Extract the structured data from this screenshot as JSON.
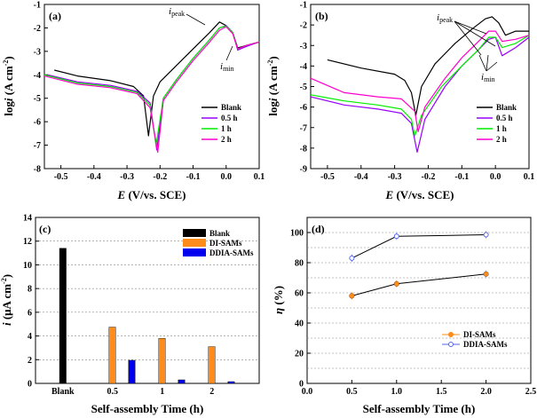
{
  "chart_data": [
    {
      "panel": "(a)",
      "type": "line",
      "xlabel_var": "E",
      "xlabel_unit": " (V/vs. SCE)",
      "ylabel_var": "log",
      "ylabel_i": "i",
      "ylabel_unit": " (A cm",
      "ylabel_exp": "-2",
      "ylabel_close": ")",
      "xlim": [
        -0.55,
        0.1
      ],
      "ylim": [
        -8,
        -1
      ],
      "xticks": [
        "-0.5",
        "-0.4",
        "-0.3",
        "-0.2",
        "-0.1",
        "0.0",
        "0.1"
      ],
      "yticks": [
        "-8",
        "-7",
        "-6",
        "-5",
        "-4",
        "-3",
        "-2",
        "-1"
      ],
      "annotations": {
        "peak_i": "i",
        "peak_sub": "peak",
        "min_i": "i",
        "min_sub": "min"
      },
      "legend": "right",
      "series": [
        {
          "name": "Blank",
          "color": "#000000",
          "x": [
            -0.52,
            -0.45,
            -0.35,
            -0.28,
            -0.25,
            -0.235,
            -0.22,
            -0.2,
            -0.15,
            -0.1,
            -0.05,
            -0.02,
            0.0,
            0.02,
            0.035,
            0.06,
            0.1
          ],
          "y": [
            -3.8,
            -4.05,
            -4.25,
            -4.5,
            -4.9,
            -6.6,
            -4.9,
            -4.3,
            -3.6,
            -2.9,
            -2.2,
            -1.75,
            -1.9,
            -2.2,
            -2.85,
            -2.75,
            -2.6
          ]
        },
        {
          "name": "0.5 h",
          "color": "#9900ff",
          "x": [
            -0.54,
            -0.45,
            -0.35,
            -0.27,
            -0.23,
            -0.21,
            -0.19,
            -0.15,
            -0.1,
            -0.05,
            -0.02,
            0.0,
            0.02,
            0.035,
            0.06,
            0.1
          ],
          "y": [
            -4.0,
            -4.3,
            -4.45,
            -4.7,
            -5.2,
            -7.2,
            -5.0,
            -4.2,
            -3.3,
            -2.5,
            -2.0,
            -1.9,
            -2.2,
            -2.95,
            -2.8,
            -2.6
          ]
        },
        {
          "name": "1 h",
          "color": "#00ee00",
          "x": [
            -0.55,
            -0.45,
            -0.35,
            -0.27,
            -0.23,
            -0.212,
            -0.19,
            -0.15,
            -0.1,
            -0.05,
            -0.02,
            0.0,
            0.02,
            0.035,
            0.06,
            0.1
          ],
          "y": [
            -4.0,
            -4.35,
            -4.5,
            -4.75,
            -5.3,
            -7.0,
            -5.0,
            -4.2,
            -3.3,
            -2.5,
            -2.0,
            -1.92,
            -2.2,
            -2.9,
            -2.75,
            -2.6
          ]
        },
        {
          "name": "2 h",
          "color": "#ff00cc",
          "x": [
            -0.55,
            -0.45,
            -0.35,
            -0.27,
            -0.23,
            -0.207,
            -0.19,
            -0.15,
            -0.1,
            -0.05,
            -0.02,
            0.0,
            0.02,
            0.035,
            0.06,
            0.1
          ],
          "y": [
            -4.05,
            -4.4,
            -4.55,
            -4.8,
            -5.4,
            -7.3,
            -5.1,
            -4.3,
            -3.4,
            -2.6,
            -2.1,
            -1.95,
            -2.25,
            -2.9,
            -2.75,
            -2.6
          ]
        }
      ]
    },
    {
      "panel": "(b)",
      "type": "line",
      "xlabel_var": "E",
      "xlabel_unit": " (V/vs. SCE)",
      "ylabel_var": "log",
      "ylabel_i": "i",
      "ylabel_unit": " (A cm",
      "ylabel_exp": "-2",
      "ylabel_close": ")",
      "xlim": [
        -0.55,
        0.1
      ],
      "ylim": [
        -9,
        -1
      ],
      "xticks": [
        "-0.5",
        "-0.4",
        "-0.3",
        "-0.2",
        "-0.1",
        "0.0",
        "0.1"
      ],
      "yticks": [
        "-9",
        "-8",
        "-7",
        "-6",
        "-5",
        "-4",
        "-3",
        "-2",
        "-1"
      ],
      "annotations": {
        "peak_i": "i",
        "peak_sub": "peak",
        "min_i": "i",
        "min_sub": "min"
      },
      "legend": "right",
      "series": [
        {
          "name": "Blank",
          "color": "#000000",
          "x": [
            -0.5,
            -0.4,
            -0.3,
            -0.27,
            -0.25,
            -0.237,
            -0.22,
            -0.18,
            -0.12,
            -0.07,
            -0.03,
            -0.01,
            0.01,
            0.03,
            0.06,
            0.1
          ],
          "y": [
            -3.7,
            -4.1,
            -4.4,
            -4.7,
            -5.3,
            -6.4,
            -5.0,
            -3.9,
            -2.9,
            -2.2,
            -1.7,
            -1.6,
            -1.9,
            -2.5,
            -2.3,
            -2.3
          ]
        },
        {
          "name": "0.5 h",
          "color": "#9900ff",
          "x": [
            -0.55,
            -0.45,
            -0.35,
            -0.28,
            -0.25,
            -0.233,
            -0.21,
            -0.15,
            -0.1,
            -0.05,
            -0.02,
            0.0,
            0.02,
            0.06,
            0.1
          ],
          "y": [
            -5.5,
            -5.9,
            -6.1,
            -6.3,
            -6.8,
            -8.2,
            -6.6,
            -5.0,
            -4.0,
            -3.2,
            -2.7,
            -2.6,
            -3.5,
            -3.1,
            -2.6
          ]
        },
        {
          "name": "1 h",
          "color": "#00ee00",
          "x": [
            -0.55,
            -0.45,
            -0.35,
            -0.28,
            -0.25,
            -0.24,
            -0.22,
            -0.16,
            -0.1,
            -0.05,
            -0.02,
            0.0,
            0.02,
            0.06,
            0.1
          ],
          "y": [
            -5.4,
            -5.7,
            -5.9,
            -6.1,
            -6.6,
            -7.4,
            -6.4,
            -5.0,
            -4.0,
            -3.2,
            -2.6,
            -2.6,
            -3.1,
            -2.9,
            -2.5
          ]
        },
        {
          "name": "2 h",
          "color": "#ff00cc",
          "x": [
            -0.55,
            -0.45,
            -0.35,
            -0.28,
            -0.24,
            -0.23,
            -0.21,
            -0.15,
            -0.1,
            -0.05,
            -0.02,
            0.0,
            0.02,
            0.06,
            0.1
          ],
          "y": [
            -4.6,
            -5.3,
            -5.5,
            -5.6,
            -6.2,
            -7.2,
            -6.0,
            -4.6,
            -3.6,
            -2.8,
            -2.3,
            -2.3,
            -2.8,
            -2.7,
            -2.5
          ]
        }
      ]
    },
    {
      "panel": "(c)",
      "type": "bar",
      "xlabel": "Self-assembly Time (h)",
      "ylabel_i": "i",
      "ylabel_unit": " (μA cm",
      "ylabel_exp": "-2",
      "ylabel_close": ")",
      "categories": [
        "Blank",
        "0.5",
        "1",
        "2"
      ],
      "ylim": [
        0,
        14
      ],
      "yticks": [
        "0",
        "2",
        "4",
        "6",
        "8",
        "10",
        "12",
        "14"
      ],
      "grid": true,
      "legend": "top-right",
      "series": [
        {
          "name": "Blank",
          "color": "#000000",
          "values": [
            11.4,
            null,
            null,
            null
          ]
        },
        {
          "name": "DI-SAMs",
          "color": "#ff8c1a",
          "values": [
            null,
            4.75,
            3.8,
            3.1
          ]
        },
        {
          "name": "DDIA-SAMs",
          "color": "#0000ee",
          "values": [
            null,
            1.95,
            0.3,
            0.15
          ]
        }
      ]
    },
    {
      "panel": "(d)",
      "type": "line",
      "xlabel": "Self-assembly Time (h)",
      "ylabel_var": "η",
      "ylabel_unit": " (%)",
      "xlim": [
        0,
        2.5
      ],
      "ylim": [
        0,
        100
      ],
      "xticks": [
        "0.0",
        "0.5",
        "1.0",
        "1.5",
        "2.0",
        "2.5"
      ],
      "yticks": [
        "0",
        "20",
        "40",
        "60",
        "80",
        "100"
      ],
      "grid": true,
      "legend": "bottom-right",
      "series": [
        {
          "name": "DI-SAMs",
          "color": "#ff8c1a",
          "x": [
            0.5,
            1.0,
            2.0
          ],
          "y": [
            58,
            66,
            72.5
          ]
        },
        {
          "name": "DDIA-SAMs",
          "color": "#5566ee",
          "x": [
            0.5,
            1.0,
            2.0
          ],
          "y": [
            83,
            97.5,
            98.5
          ]
        }
      ]
    }
  ]
}
